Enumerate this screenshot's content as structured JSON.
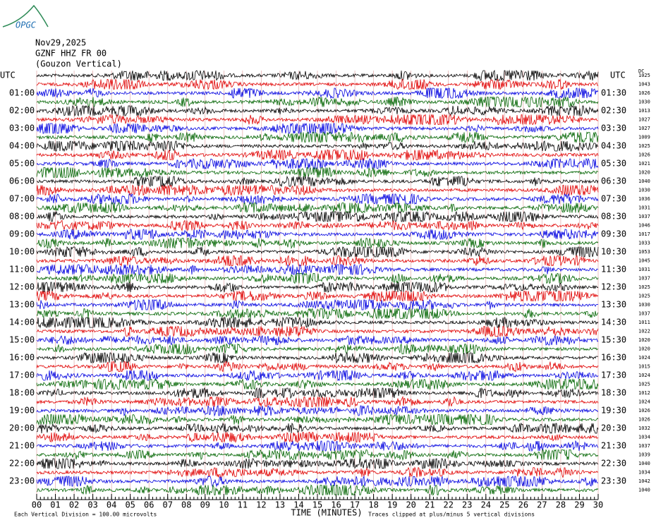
{
  "chart_data": {
    "type": "helicorder",
    "logo": "OPGC",
    "title": "Nov29,2025",
    "subtitle": "GZNF HHZ FR 00",
    "station": "(Gouzon Vertical)",
    "left_labels": [
      "UTC",
      "01:00",
      "02:00",
      "03:00",
      "04:00",
      "05:00",
      "06:00",
      "07:00",
      "08:00",
      "09:00",
      "10:00",
      "11:00",
      "12:00",
      "13:00",
      "14:00",
      "15:00",
      "16:00",
      "17:00",
      "18:00",
      "19:00",
      "20:00",
      "21:00",
      "22:00",
      "23:00"
    ],
    "right_labels": [
      "UTC",
      "01:30",
      "02:30",
      "03:30",
      "04:30",
      "05:30",
      "06:30",
      "07:30",
      "08:30",
      "09:30",
      "10:30",
      "11:30",
      "12:30",
      "13:30",
      "14:30",
      "15:30",
      "16:30",
      "17:30",
      "18:30",
      "19:30",
      "20:30",
      "21:30",
      "22:30",
      "23:30"
    ],
    "dc_label": "DC",
    "dc_values": [
      1025,
      1043,
      1026,
      1030,
      1013,
      1027,
      1027,
      1009,
      1025,
      1026,
      1021,
      1020,
      1040,
      1030,
      1036,
      1031,
      1037,
      1046,
      1017,
      1033,
      1053,
      1045,
      1031,
      1037,
      1025,
      1025,
      1030,
      1037,
      1011,
      1022,
      1020,
      1020,
      1024,
      1015,
      1024,
      1025,
      1012,
      1024,
      1026,
      1026,
      1032,
      1034,
      1037,
      1039,
      1040,
      1034,
      1042,
      1040
    ],
    "trace_colors": [
      "#000000",
      "#e00000",
      "#0000e0",
      "#006400"
    ],
    "xlabel": "TIME (MINUTES)",
    "xlim": [
      0,
      30
    ],
    "xticks": [
      {
        "value": 0,
        "label": "00"
      },
      {
        "value": 1,
        "label": "01"
      },
      {
        "value": 2,
        "label": "02"
      },
      {
        "value": 3,
        "label": "03"
      },
      {
        "value": 4,
        "label": "04"
      },
      {
        "value": 5,
        "label": "05"
      },
      {
        "value": 6,
        "label": "06"
      },
      {
        "value": 7,
        "label": "07"
      },
      {
        "value": 8,
        "label": "08"
      },
      {
        "value": 9,
        "label": "09"
      },
      10,
      11,
      12,
      13,
      14,
      15,
      16,
      17,
      18,
      19,
      20,
      21,
      22,
      23,
      24,
      25,
      26,
      27,
      28,
      29,
      30
    ],
    "grid": true,
    "footer_left": "Each Vertical Division =  100.00 microvolts",
    "footer_right": "Traces clipped at plus/minus 5 vertical divisions"
  }
}
